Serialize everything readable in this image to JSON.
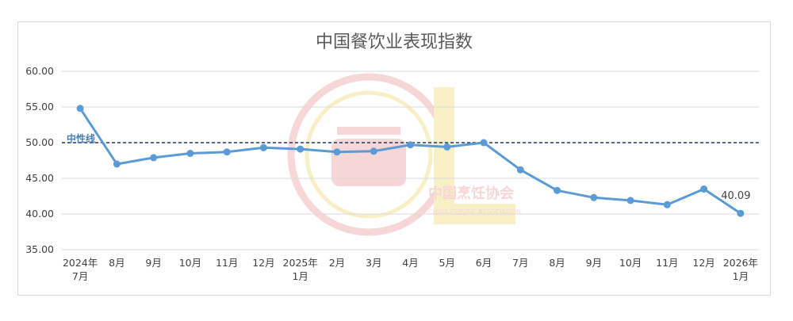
{
  "chart_data": {
    "type": "line",
    "title": "中国餐饮业表现指数",
    "x": [
      "2024年7月",
      "8月",
      "9月",
      "10月",
      "11月",
      "12月",
      "2025年1月",
      "2月",
      "3月",
      "4月",
      "5月",
      "6月",
      "7月",
      "8月",
      "9月",
      "10月",
      "11月",
      "12月",
      "2026年1月"
    ],
    "x_tick_lines": [
      [
        "2024年",
        "7月"
      ],
      [
        "8月"
      ],
      [
        "9月"
      ],
      [
        "10月"
      ],
      [
        "11月"
      ],
      [
        "12月"
      ],
      [
        "2025年",
        "1月"
      ],
      [
        "2月"
      ],
      [
        "3月"
      ],
      [
        "4月"
      ],
      [
        "5月"
      ],
      [
        "6月"
      ],
      [
        "7月"
      ],
      [
        "8月"
      ],
      [
        "9月"
      ],
      [
        "10月"
      ],
      [
        "11月"
      ],
      [
        "12月"
      ],
      [
        "2026年",
        "1月"
      ]
    ],
    "values": [
      54.8,
      47.0,
      47.9,
      48.5,
      48.7,
      49.3,
      49.1,
      48.7,
      48.8,
      49.7,
      49.4,
      50.0,
      46.2,
      43.3,
      42.3,
      41.9,
      41.3,
      43.5,
      40.09
    ],
    "ylim": [
      35,
      60
    ],
    "y_ticks": [
      "35.00",
      "40.00",
      "45.00",
      "50.00",
      "55.00",
      "60.00"
    ],
    "reference_line": {
      "value": 50,
      "label": "中性线"
    },
    "data_labels": [
      {
        "index": 18,
        "text": "40.09"
      }
    ],
    "grid": true,
    "line_color": "#5b9bd5",
    "reference_color": "#1f3864",
    "grid_color": "#d9d9d9"
  },
  "watermark": {
    "text": "中国烹饪协会",
    "subtext": "CHINA CUISINE ASSOCIATION",
    "color": "#e8a0a0"
  }
}
